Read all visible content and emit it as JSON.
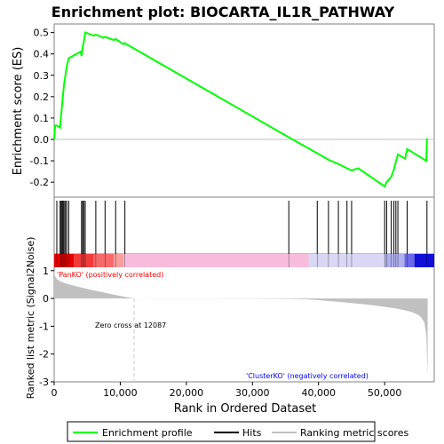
{
  "title": "Enrichment plot: BIOCARTA_IL1R_PATHWAY",
  "colors": {
    "profile": "#00ff00",
    "hits": "#000000",
    "metric": "#c0c0c0",
    "pos_label": "#ff0000",
    "neg_label": "#0000ff",
    "zero_line": "#bfbfbf"
  },
  "legend": {
    "profile_label": "Enrichment profile",
    "hits_label": "Hits",
    "metric_label": "Ranking metric scores"
  },
  "annotations": {
    "pos_label": "'PanKO' (positively correlated)",
    "neg_label": "'ClusterKO' (negatively correlated)",
    "zero_cross": "Zero cross at 12087"
  },
  "chart_data": {
    "type": "line",
    "title": "Enrichment plot: BIOCARTA_IL1R_PATHWAY",
    "xlabel": "Rank in Ordered Dataset",
    "es_panel": {
      "ylabel": "Enrichment score (ES)",
      "ylim": [
        -0.27,
        0.54
      ],
      "yticks": [
        -0.2,
        -0.1,
        0.0,
        0.1,
        0.2,
        0.3,
        0.4,
        0.5
      ],
      "ytick_labels": [
        "-0.2",
        "-0.1",
        "0.0",
        "0.1",
        "0.2",
        "0.3",
        "0.4",
        "0.5"
      ],
      "grid": false,
      "series": [
        {
          "name": "Enrichment profile",
          "x": [
            0,
            150,
            400,
            900,
            1050,
            1200,
            1350,
            1500,
            1700,
            1900,
            2200,
            4000,
            4150,
            4300,
            4500,
            4700,
            6000,
            6300,
            7500,
            7700,
            9000,
            9300,
            10500,
            10700,
            35500,
            39800,
            41500,
            43000,
            44300,
            45000,
            46000,
            50000,
            50300,
            51000,
            51400,
            51700,
            52000,
            53100,
            53400,
            56300,
            56400
          ],
          "y": [
            0.0,
            0.065,
            0.065,
            0.055,
            0.11,
            0.16,
            0.21,
            0.26,
            0.3,
            0.34,
            0.38,
            0.41,
            0.39,
            0.43,
            0.46,
            0.5,
            0.485,
            0.49,
            0.475,
            0.48,
            0.465,
            0.47,
            0.445,
            0.45,
            0.01,
            -0.065,
            -0.095,
            -0.115,
            -0.135,
            -0.145,
            -0.135,
            -0.22,
            -0.2,
            -0.175,
            -0.14,
            -0.105,
            -0.07,
            -0.09,
            -0.045,
            -0.1,
            0.005
          ]
        }
      ]
    },
    "hits_panel": {
      "hit_positions": [
        400,
        900,
        1050,
        1200,
        1350,
        1500,
        1700,
        1900,
        2200,
        4150,
        4300,
        4500,
        4700,
        6300,
        7700,
        9300,
        10700,
        35500,
        39800,
        41500,
        43000,
        44300,
        45000,
        50000,
        50300,
        51000,
        51400,
        51700,
        52000,
        53400,
        56400
      ]
    },
    "metric_panel": {
      "ylabel": "Ranked list metric (Signal2Noise)",
      "ylim": [
        -3,
        1.6
      ],
      "yticks": [
        -3,
        -2,
        -1,
        0,
        1
      ],
      "ytick_labels": [
        "-3",
        "-2",
        "-1",
        "0",
        "1"
      ],
      "series": [
        {
          "name": "Ranking metric scores",
          "x": [
            0,
            100,
            400,
            1000,
            2000,
            3000,
            4000,
            5000,
            6000,
            8000,
            10000,
            12087,
            15000,
            20000,
            25000,
            30000,
            35000,
            38000,
            40000,
            42000,
            44000,
            46000,
            48000,
            50000,
            52000,
            54000,
            55000,
            55500,
            56000,
            56300,
            56500
          ],
          "y": [
            1.0,
            0.82,
            0.7,
            0.6,
            0.52,
            0.46,
            0.4,
            0.34,
            0.29,
            0.19,
            0.09,
            0.0,
            -0.003,
            -0.006,
            -0.008,
            -0.01,
            -0.015,
            -0.03,
            -0.06,
            -0.1,
            -0.14,
            -0.19,
            -0.24,
            -0.3,
            -0.37,
            -0.48,
            -0.58,
            -0.68,
            -0.85,
            -1.3,
            -2.85
          ]
        }
      ]
    },
    "xaxis": {
      "xlim": [
        0,
        57500
      ],
      "xticks": [
        0,
        10000,
        20000,
        30000,
        40000,
        50000
      ],
      "xtick_labels": [
        "0",
        "10,000",
        "20,000",
        "30,000",
        "40,000",
        "50,000"
      ],
      "zero_cross": 12087
    },
    "legend_position": "bottom"
  }
}
